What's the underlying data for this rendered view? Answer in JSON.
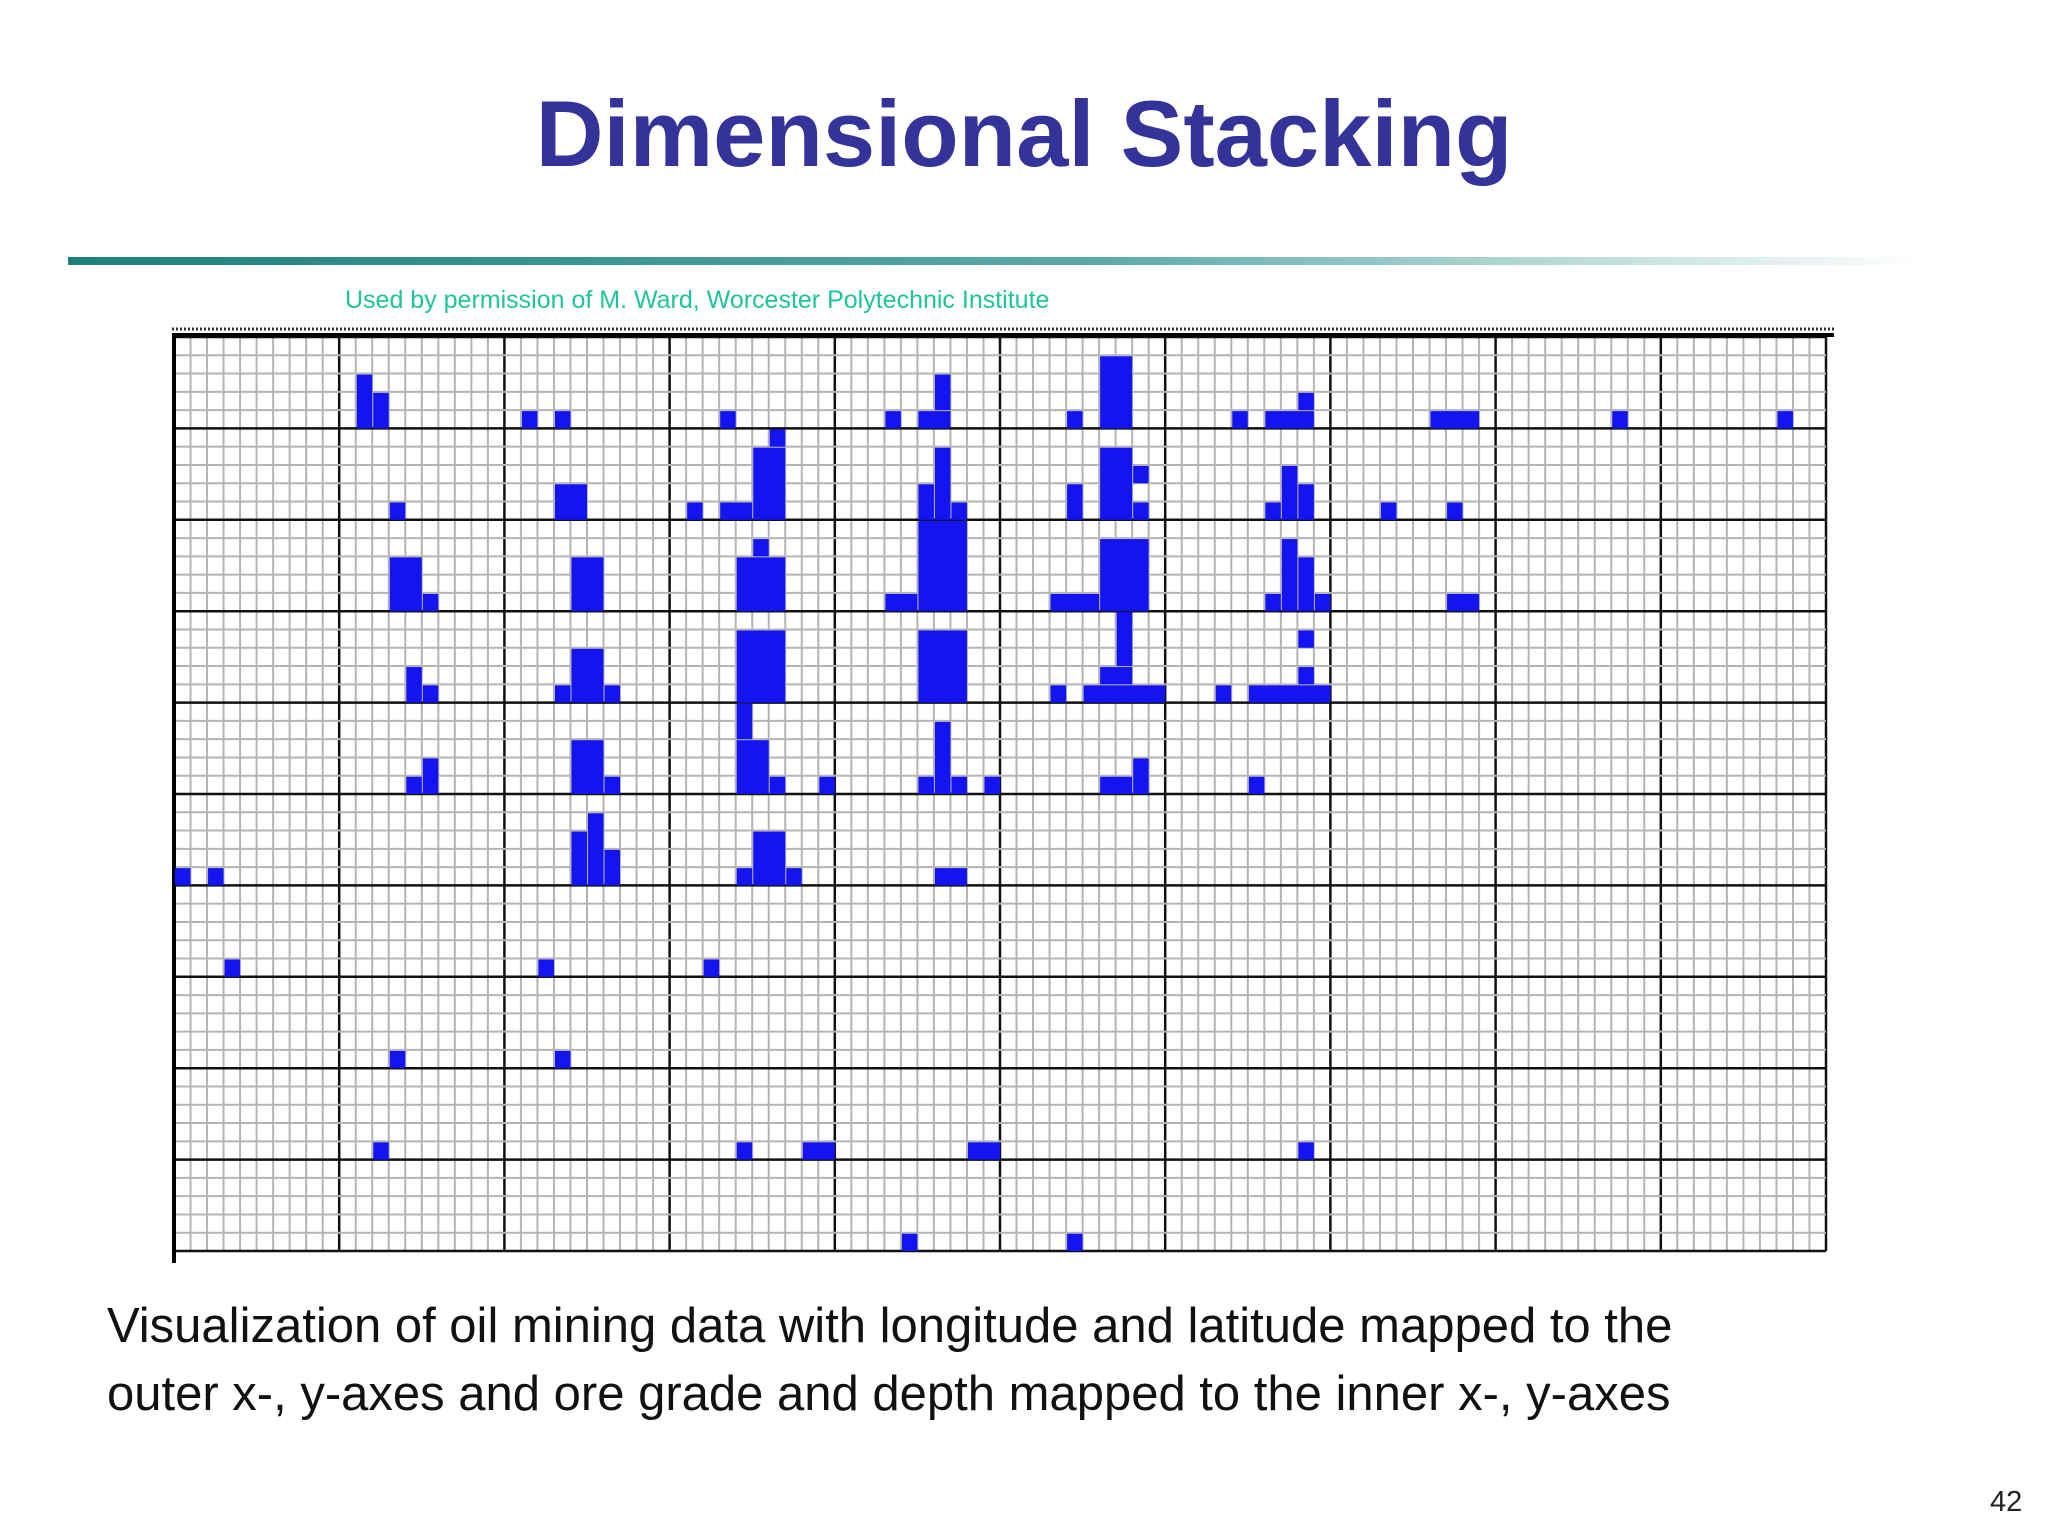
{
  "header": {
    "title": "Dimensional Stacking"
  },
  "figure": {
    "credit": "Used by permission of M. Ward, Worcester Polytechnic Institute"
  },
  "caption": {
    "lines": [
      "Visualization of oil mining data with longitude and latitude mapped to the",
      "outer x-, y-axes and ore grade and depth mapped to the inner x-, y-axes"
    ]
  },
  "footer": {
    "page_number": "42"
  }
}
